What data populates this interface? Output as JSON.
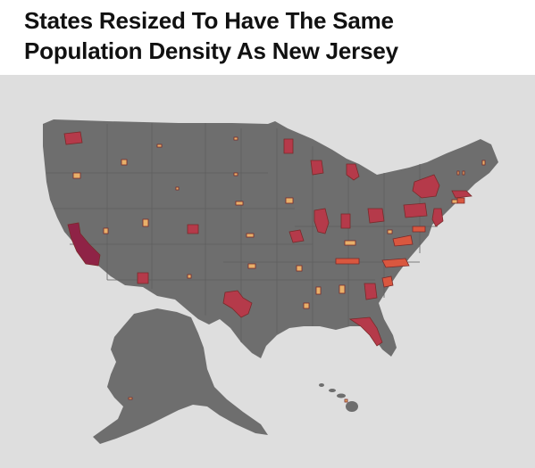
{
  "title": "States Resized To Have The Same Population Density As New Jersey",
  "title_lines": [
    "States Resized To Have The Same",
    "Population Density As New Jersey"
  ],
  "colors": {
    "background": "#dedede",
    "land": "#6e6e6e",
    "state_borders": "#5f5f5f",
    "high_density_fill": "#b53a4a",
    "dark_high_density_fill": "#8f2346",
    "mid_density_fill": "#d9573f",
    "low_density_fill": "#e8b06a"
  },
  "map": {
    "subject": "United States with each state shrunk to match New Jersey's population density"
  }
}
